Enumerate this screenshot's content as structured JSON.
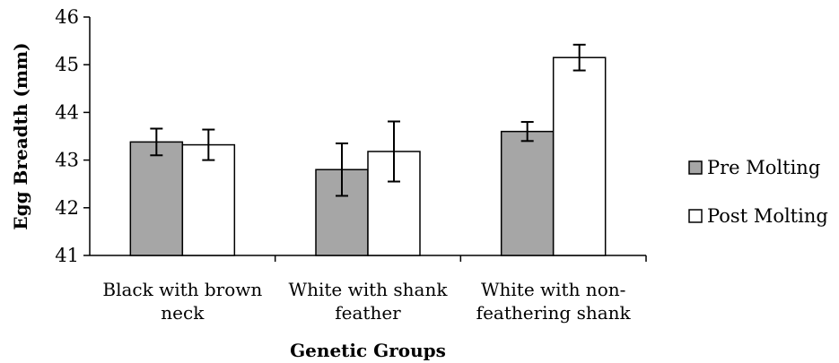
{
  "chart_data": {
    "type": "bar",
    "title": "",
    "xlabel": "Genetic Groups",
    "ylabel": "Egg Breadth (mm)",
    "ylim": [
      41,
      46
    ],
    "yticks": [
      41,
      42,
      43,
      44,
      45,
      46
    ],
    "categories": [
      [
        "Black with brown",
        "neck"
      ],
      [
        "White with shank",
        "feather"
      ],
      [
        "White with non-",
        "feathering shank"
      ]
    ],
    "series": [
      {
        "name": "Pre Molting",
        "color": "#a6a6a6",
        "values": [
          43.38,
          42.8,
          43.6
        ],
        "errors": [
          0.28,
          0.55,
          0.2
        ]
      },
      {
        "name": "Post Molting",
        "color": "#ffffff",
        "values": [
          43.32,
          43.18,
          45.15
        ],
        "errors": [
          0.32,
          0.63,
          0.27
        ]
      }
    ],
    "grid": false,
    "legend_position": "right"
  }
}
